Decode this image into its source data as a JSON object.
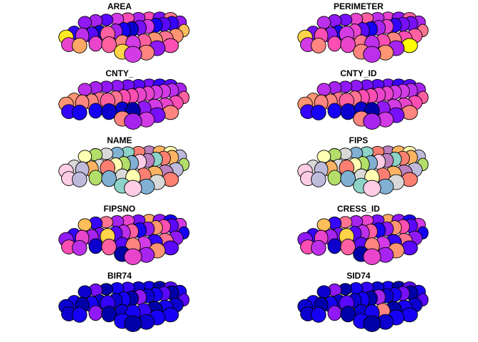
{
  "panels": [
    {
      "title": "AREA"
    },
    {
      "title": "PERIMETER"
    },
    {
      "title": "CNTY_"
    },
    {
      "title": "CNTY_ID"
    },
    {
      "title": "NAME"
    },
    {
      "title": "FIPS"
    },
    {
      "title": "FIPSNO"
    },
    {
      "title": "CRESS_ID"
    },
    {
      "title": "BIR74"
    },
    {
      "title": "SID74"
    }
  ],
  "palettes": {
    "sequential": [
      "#0000a8",
      "#1a00ff",
      "#6a0aff",
      "#a020f0",
      "#d13ae8",
      "#ff4fb0",
      "#ff7a8a",
      "#ff9e6a",
      "#ffcf50",
      "#ffff00"
    ],
    "qualitative": [
      "#8dd3c7",
      "#ffffb3",
      "#bebada",
      "#fb8072",
      "#80b1d3",
      "#fdb462",
      "#b3de69",
      "#fccde5",
      "#d9d9d9",
      "#bc80bd"
    ]
  },
  "chart_data": {
    "type": "map",
    "panels": [
      {
        "title": "AREA",
        "values": [
          0.95,
          0.15,
          0.4,
          0.2,
          0.05,
          0.6,
          0.35,
          0.1,
          0.05,
          0.25,
          0.45,
          0.1,
          0.2,
          0.15,
          0.3,
          0.3,
          0.35,
          0.2,
          0.45,
          0.55,
          0.35,
          0.55,
          0.25,
          0.65,
          0.5,
          0.8,
          0.5,
          0.6,
          0.7,
          0.45,
          0.6,
          0.75,
          0.65,
          0.75,
          0.85,
          0.9,
          0.45,
          0.7,
          0.3,
          0.55
        ]
      },
      {
        "title": "PERIMETER",
        "values": [
          0.9,
          0.25,
          0.55,
          0.3,
          0.1,
          0.45,
          0.5,
          0.2,
          0.1,
          0.35,
          0.5,
          0.15,
          0.25,
          0.25,
          0.35,
          0.4,
          0.3,
          0.25,
          0.5,
          0.6,
          0.4,
          0.5,
          0.3,
          0.6,
          0.45,
          0.7,
          0.55,
          0.5,
          0.65,
          0.4,
          0.55,
          0.7,
          0.55,
          0.6,
          0.65,
          0.7,
          0.4,
          0.75,
          0.35,
          1.0
        ]
      },
      {
        "title": "CNTY_",
        "values": [
          0.75,
          0.75,
          0.7,
          0.7,
          0.65,
          0.6,
          0.65,
          0.55,
          0.55,
          0.5,
          0.5,
          0.45,
          0.45,
          0.4,
          0.35,
          0.4,
          0.35,
          0.3,
          0.3,
          0.25,
          0.2,
          0.25,
          0.15,
          0.2,
          0.15,
          0.1,
          0.1,
          0.05,
          0.05,
          0.0,
          0.3,
          0.45,
          0.5,
          0.55,
          0.6,
          0.7,
          0.35,
          0.45,
          0.25,
          0.7
        ]
      },
      {
        "title": "CNTY_ID",
        "values": [
          0.75,
          0.75,
          0.7,
          0.7,
          0.65,
          0.6,
          0.65,
          0.55,
          0.55,
          0.5,
          0.5,
          0.45,
          0.45,
          0.4,
          0.35,
          0.4,
          0.35,
          0.3,
          0.3,
          0.25,
          0.2,
          0.25,
          0.15,
          0.2,
          0.15,
          0.1,
          0.1,
          0.05,
          0.05,
          0.0,
          0.3,
          0.45,
          0.5,
          0.55,
          0.6,
          0.7,
          0.35,
          0.45,
          0.25,
          0.7
        ]
      },
      {
        "title": "NAME",
        "values": [
          0.7,
          0.8,
          0.2,
          0.5,
          0.85,
          0.3,
          0.1,
          0.6,
          0.4,
          0.7,
          0.9,
          0.0,
          0.3,
          0.5,
          0.2,
          0.1,
          0.6,
          0.8,
          0.4,
          0.0,
          0.3,
          0.9,
          0.5,
          0.1,
          0.7,
          0.2,
          0.6,
          0.4,
          0.8,
          0.1,
          0.3,
          0.5,
          0.9,
          0.2,
          0.6,
          0.0,
          0.7,
          0.4,
          0.8,
          0.3
        ]
      },
      {
        "title": "FIPS",
        "values": [
          0.7,
          0.8,
          0.2,
          0.5,
          0.85,
          0.3,
          0.1,
          0.6,
          0.4,
          0.7,
          0.9,
          0.0,
          0.3,
          0.5,
          0.2,
          0.1,
          0.6,
          0.8,
          0.4,
          0.0,
          0.3,
          0.9,
          0.5,
          0.1,
          0.7,
          0.2,
          0.6,
          0.4,
          0.8,
          0.1,
          0.3,
          0.5,
          0.9,
          0.2,
          0.6,
          0.0,
          0.7,
          0.4,
          0.8,
          0.3
        ]
      },
      {
        "title": "FIPSNO",
        "values": [
          0.3,
          0.15,
          0.5,
          0.35,
          0.25,
          0.9,
          0.2,
          0.4,
          0.6,
          0.1,
          0.3,
          0.75,
          0.55,
          0.2,
          0.45,
          0.85,
          0.15,
          0.65,
          0.35,
          0.5,
          0.25,
          0.8,
          0.3,
          0.1,
          0.55,
          0.4,
          0.05,
          0.6,
          0.2,
          0.7,
          0.45,
          0.15,
          0.65,
          0.3,
          0.1,
          0.0,
          0.5,
          0.35,
          0.75,
          0.2
        ]
      },
      {
        "title": "CRESS_ID",
        "values": [
          0.3,
          0.15,
          0.5,
          0.35,
          0.25,
          0.9,
          0.2,
          0.4,
          0.6,
          0.1,
          0.3,
          0.75,
          0.55,
          0.2,
          0.45,
          0.85,
          0.15,
          0.65,
          0.35,
          0.5,
          0.25,
          0.8,
          0.3,
          0.1,
          0.55,
          0.4,
          0.05,
          0.6,
          0.2,
          0.7,
          0.45,
          0.15,
          0.65,
          0.3,
          0.1,
          0.0,
          0.5,
          0.35,
          0.75,
          0.2
        ]
      },
      {
        "title": "BIR74",
        "values": [
          0.05,
          0.1,
          0.0,
          0.1,
          0.05,
          0.15,
          0.05,
          0.1,
          0.0,
          0.3,
          0.05,
          0.1,
          0.2,
          0.0,
          0.1,
          0.05,
          0.25,
          0.0,
          0.1,
          0.15,
          0.05,
          0.1,
          0.0,
          0.2,
          0.05,
          0.1,
          0.3,
          0.0,
          0.05,
          0.1,
          0.15,
          0.0,
          0.1,
          0.05,
          0.2,
          0.1,
          0.0,
          0.05,
          0.1,
          0.1
        ]
      },
      {
        "title": "SID74",
        "values": [
          0.05,
          0.1,
          0.0,
          0.1,
          0.05,
          0.2,
          0.05,
          0.1,
          0.0,
          0.35,
          0.05,
          0.1,
          0.25,
          0.0,
          0.1,
          0.05,
          0.3,
          0.0,
          0.1,
          0.15,
          0.05,
          0.1,
          0.0,
          0.2,
          0.05,
          0.1,
          0.3,
          0.0,
          0.05,
          0.1,
          0.7,
          0.0,
          0.1,
          0.05,
          0.2,
          0.1,
          0.0,
          0.05,
          0.1,
          0.1
        ]
      }
    ]
  }
}
